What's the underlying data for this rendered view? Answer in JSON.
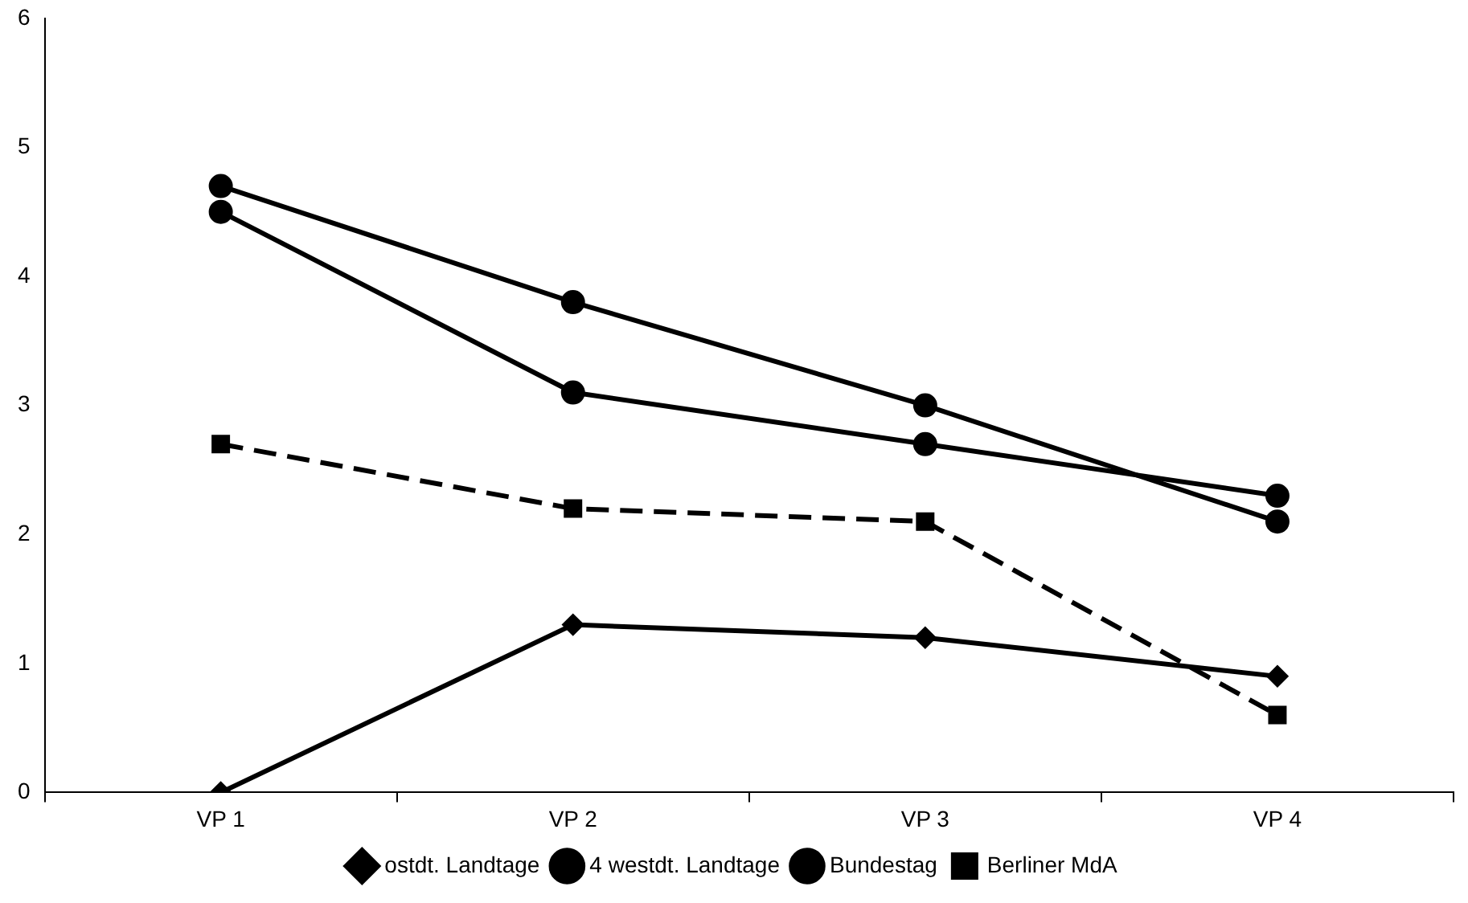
{
  "chart_data": {
    "type": "line",
    "categories": [
      "VP 1",
      "VP 2",
      "VP 3",
      "VP 4"
    ],
    "series": [
      {
        "name": "ostdt. Landtage",
        "color": "#000000",
        "values": [
          0,
          1.3,
          1.2,
          0.9
        ],
        "marker": "diamond",
        "line_style": "solid"
      },
      {
        "name": "4 westdt. Landtage",
        "color": "#000000",
        "values": [
          4.7,
          3.8,
          3.0,
          2.1
        ],
        "marker": "circle",
        "line_style": "solid"
      },
      {
        "name": "Bundestag",
        "color": "#000000",
        "values": [
          4.5,
          3.1,
          2.7,
          2.3
        ],
        "marker": "circle",
        "line_style": "solid"
      },
      {
        "name": "Berliner MdA",
        "color": "#000000",
        "values": [
          2.7,
          2.2,
          2.1,
          0.6
        ],
        "marker": "square",
        "line_style": "dashed"
      }
    ],
    "ylim": [
      0,
      6
    ],
    "yticks": [
      0,
      1,
      2,
      3,
      4,
      5,
      6
    ],
    "legend": "bottom"
  }
}
